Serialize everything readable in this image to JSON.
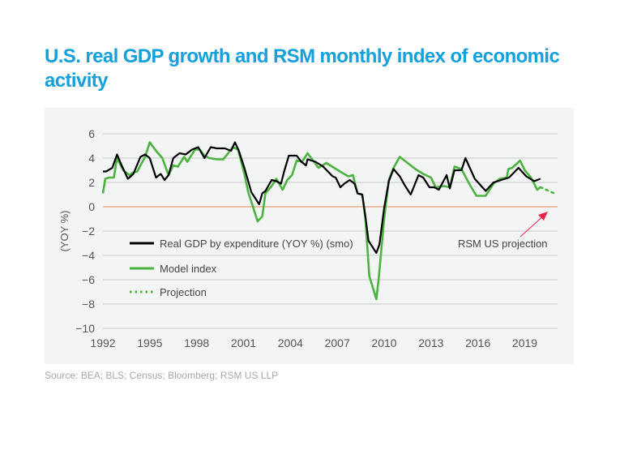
{
  "title": "U.S. real GDP growth and RSM monthly index of economic activity",
  "source": "Source: BEA; BLS; Census; Bloomberg; RSM US LLP",
  "chart_data": {
    "type": "line",
    "title": "U.S. real GDP growth and RSM monthly index of economic activity",
    "xlabel": "",
    "ylabel": "(YOY %)",
    "xlim": [
      1992,
      2021.1
    ],
    "ylim": [
      -10,
      6
    ],
    "xticks": [
      "1992",
      "1995",
      "1998",
      "2001",
      "2004",
      "2007",
      "2010",
      "2013",
      "2016",
      "2019"
    ],
    "yticks": [
      "6",
      "4",
      "2",
      "0",
      "−2",
      "−4",
      "−6",
      "−8",
      "−10"
    ],
    "grid": true,
    "legend_position": "lower-left",
    "colors": {
      "gdp": "#000000",
      "model": "#4cb340",
      "projection": "#4cb340",
      "zero_line": "#e8a070",
      "annotation_arrow": "#e8264a",
      "background": "#f3f5f4"
    },
    "annotation": {
      "text": "RSM US projection"
    },
    "series": [
      {
        "name": "Real GDP by expenditure (YOY %) (smo)",
        "style": "solid",
        "x": [
          1992.0,
          1992.2,
          1992.6,
          1992.9,
          1993.2,
          1993.6,
          1993.95,
          1994.4,
          1994.7,
          1995.0,
          1995.4,
          1995.7,
          1995.95,
          1996.2,
          1996.5,
          1996.9,
          1997.3,
          1997.7,
          1998.1,
          1998.5,
          1998.9,
          1999.3,
          1999.8,
          2000.2,
          2000.45,
          2000.7,
          2001.05,
          2001.3,
          2001.5,
          2001.75,
          2002.0,
          2002.2,
          2002.4,
          2002.8,
          2003.1,
          2003.4,
          2003.6,
          2003.9,
          2004.4,
          2004.7,
          2005.0,
          2005.1,
          2005.6,
          2006.1,
          2006.7,
          2006.9,
          2007.2,
          2007.45,
          2007.8,
          2008.1,
          2008.3,
          2008.6,
          2008.8,
          2009.0,
          2009.5,
          2009.7,
          2010.0,
          2010.3,
          2010.6,
          2011.0,
          2011.3,
          2011.7,
          2012.2,
          2012.5,
          2012.9,
          2013.2,
          2013.5,
          2014.0,
          2014.2,
          2014.5,
          2014.95,
          2015.2,
          2015.8,
          2016.5,
          2017.0,
          2017.5,
          2018.0,
          2018.6,
          2019.1,
          2019.6,
          2020.0
        ],
        "y": [
          2.9,
          2.9,
          3.2,
          4.3,
          3.4,
          2.3,
          2.7,
          4.1,
          4.3,
          4.0,
          2.4,
          2.7,
          2.2,
          2.6,
          4.0,
          4.4,
          4.3,
          4.7,
          4.9,
          4.0,
          4.9,
          4.8,
          4.8,
          4.6,
          5.3,
          4.6,
          3.2,
          2.1,
          1.2,
          0.7,
          0.2,
          1.1,
          1.3,
          2.2,
          2.1,
          1.9,
          2.9,
          4.2,
          4.2,
          3.7,
          3.4,
          3.9,
          3.7,
          3.3,
          2.5,
          2.4,
          1.6,
          1.9,
          2.2,
          1.9,
          1.1,
          1.0,
          -0.8,
          -2.8,
          -3.8,
          -3.1,
          -0.1,
          2.1,
          3.1,
          2.5,
          1.8,
          1.0,
          2.6,
          2.4,
          1.6,
          1.6,
          1.4,
          2.6,
          1.5,
          3.0,
          3.0,
          4.0,
          2.3,
          1.3,
          2.0,
          2.2,
          2.4,
          3.2,
          2.5,
          2.1,
          2.3
        ]
      },
      {
        "name": "Model index",
        "style": "solid",
        "x": [
          1992.0,
          1992.15,
          1992.4,
          1992.7,
          1992.9,
          1993.3,
          1993.7,
          1993.9,
          1994.2,
          1994.4,
          1994.7,
          1995.0,
          1995.4,
          1995.8,
          1996.0,
          1996.2,
          1996.5,
          1996.8,
          1997.2,
          1997.4,
          1997.9,
          1998.2,
          1998.5,
          1998.8,
          1999.3,
          1999.7,
          1999.95,
          2000.3,
          2000.65,
          2001.05,
          2001.3,
          2001.6,
          2001.9,
          2002.2,
          2002.4,
          2002.8,
          2003.1,
          2003.5,
          2003.8,
          2004.1,
          2004.4,
          2004.75,
          2005.1,
          2005.8,
          2006.3,
          2006.8,
          2007.3,
          2007.7,
          2008.0,
          2008.3,
          2008.6,
          2008.8,
          2009.05,
          2009.5,
          2009.65,
          2010.0,
          2010.3,
          2010.6,
          2011.0,
          2011.4,
          2012.0,
          2012.5,
          2013.0,
          2013.3,
          2013.85,
          2014.2,
          2014.5,
          2014.95,
          2015.4,
          2015.9,
          2016.5,
          2017.0,
          2017.4,
          2017.85,
          2017.95,
          2018.2,
          2018.7,
          2019.0,
          2019.4,
          2019.8,
          2020.0
        ],
        "y": [
          1.1,
          2.3,
          2.4,
          2.4,
          4.0,
          3.0,
          2.6,
          2.8,
          2.9,
          3.4,
          4.1,
          5.3,
          4.6,
          4.0,
          3.3,
          2.6,
          3.4,
          3.3,
          4.1,
          3.7,
          4.7,
          4.7,
          4.2,
          4.0,
          3.9,
          3.9,
          4.3,
          4.9,
          4.7,
          2.7,
          1.2,
          0.0,
          -1.2,
          -0.8,
          1.1,
          1.7,
          2.3,
          1.4,
          2.2,
          2.6,
          3.8,
          3.7,
          4.4,
          3.2,
          3.6,
          3.2,
          2.8,
          2.5,
          2.6,
          1.1,
          1.0,
          -1.0,
          -5.7,
          -7.6,
          -5.9,
          -1.0,
          2.2,
          3.2,
          4.1,
          3.7,
          3.1,
          2.7,
          2.4,
          1.6,
          1.7,
          1.6,
          3.3,
          3.1,
          2.0,
          0.9,
          0.9,
          1.9,
          2.3,
          2.4,
          3.1,
          3.2,
          3.8,
          3.0,
          2.4,
          1.4,
          1.6
        ]
      },
      {
        "name": "Projection",
        "style": "dotted",
        "x": [
          2020.0,
          2020.9
        ],
        "y": [
          1.6,
          1.1
        ]
      }
    ]
  }
}
